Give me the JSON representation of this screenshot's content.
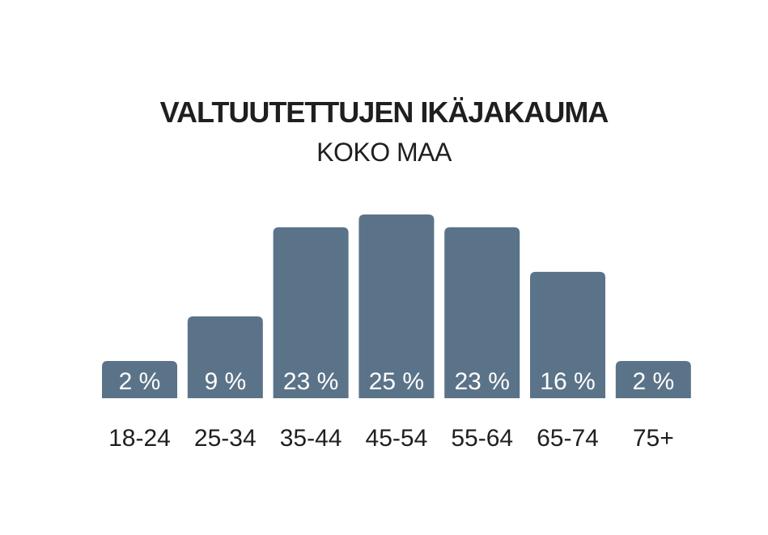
{
  "chart_data": {
    "type": "bar",
    "title": "VALTUUTETTUJEN IKÄJAKAUMA",
    "subtitle": "KOKO MAA",
    "categories": [
      "18-24",
      "25-34",
      "35-44",
      "45-54",
      "55-64",
      "65-74",
      "75+"
    ],
    "values": [
      2,
      9,
      23,
      25,
      23,
      16,
      2
    ],
    "value_labels": [
      "2 %",
      "9 %",
      "23 %",
      "25 %",
      "23 %",
      "16 %",
      "2 %"
    ],
    "unit": "%",
    "bar_color": "#5b7389",
    "grid": false,
    "legend": "none"
  }
}
